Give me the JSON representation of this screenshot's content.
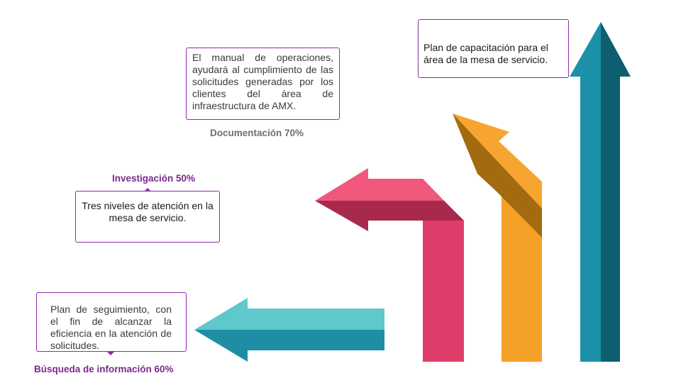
{
  "colors": {
    "box_border": "#8e2aa6",
    "label_purple": "#7b2a8c",
    "label_gray": "#6f6f6f",
    "teal_light": "#5ec8ca",
    "teal_dark": "#1f8ea5",
    "pink_light": "#f0587d",
    "pink_dark": "#a8294c",
    "orange_light": "#f7a531",
    "orange_dark": "#a36a10",
    "blue_light": "#1b90a8",
    "blue_dark": "#0e5e6f"
  },
  "boxes": {
    "documentation": "El manual de operaciones, ayudará al cumplimiento de las solicitudes generadas por los clientes del área de infraestructura de AMX.",
    "training": "Plan de capacitación para el área de la mesa de servicio.",
    "research": "Tres  niveles de atención en la mesa de servicio.",
    "followup": "Plan de seguimiento, con el fin de alcanzar la eficiencia en la atención de solicitudes."
  },
  "labels": {
    "documentation": "Documentación 70%",
    "research": "Investigación 50%",
    "info_search": "Búsqueda de información 60%"
  }
}
